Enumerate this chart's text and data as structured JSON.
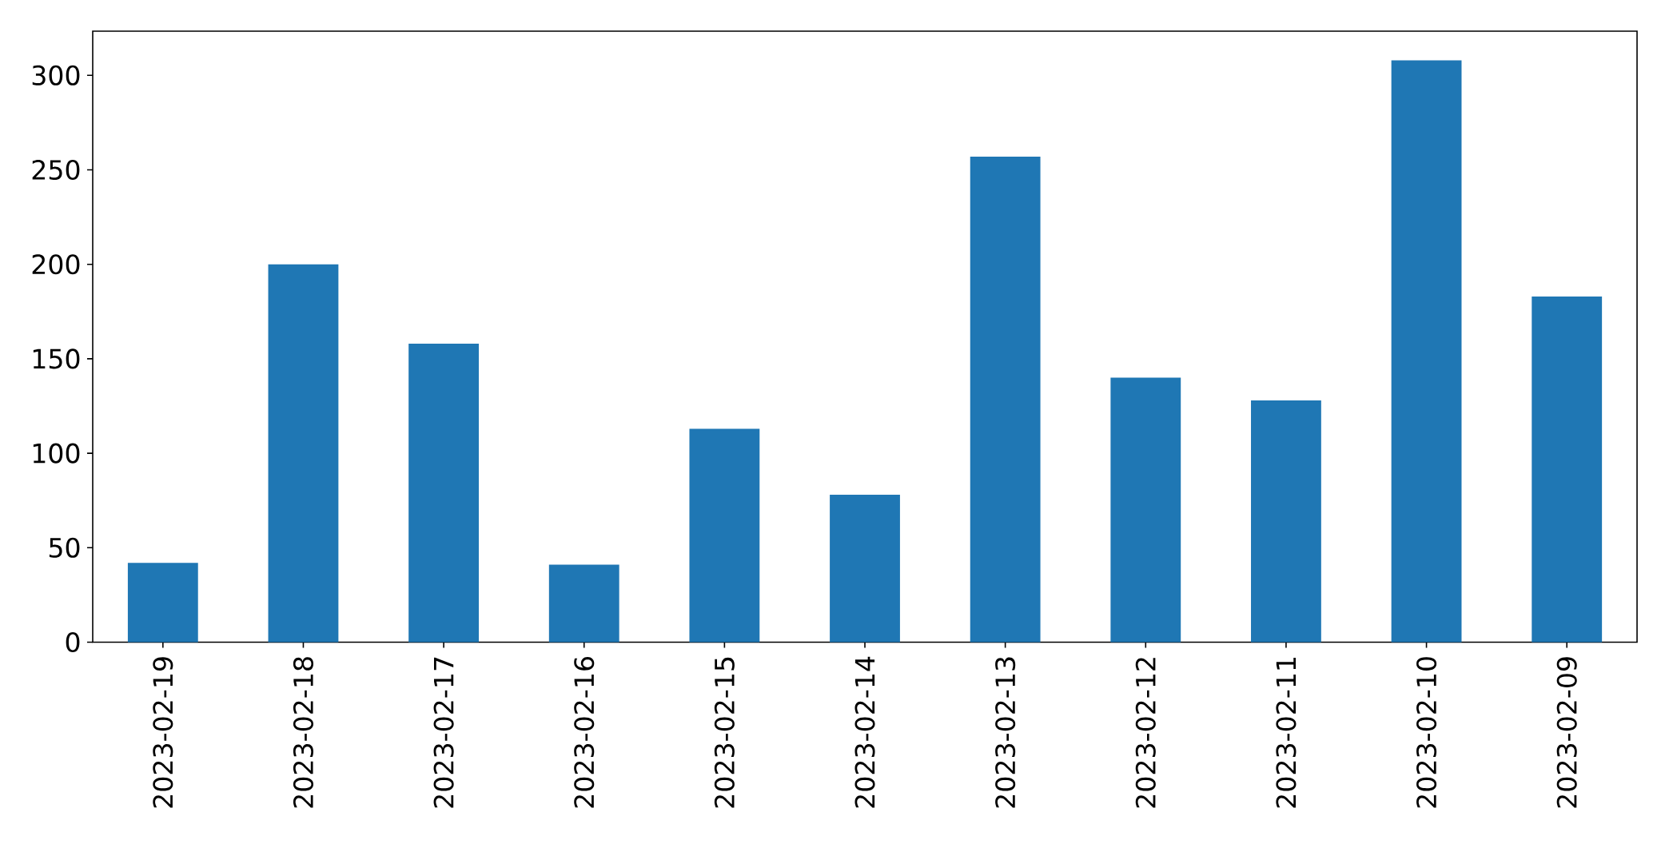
{
  "chart_data": {
    "type": "bar",
    "categories": [
      "2023-02-19",
      "2023-02-18",
      "2023-02-17",
      "2023-02-16",
      "2023-02-15",
      "2023-02-14",
      "2023-02-13",
      "2023-02-12",
      "2023-02-11",
      "2023-02-10",
      "2023-02-09"
    ],
    "values": [
      42,
      200,
      158,
      41,
      113,
      78,
      257,
      140,
      128,
      308,
      183
    ],
    "color": "#1f77b4",
    "ylim": [
      0,
      323.4
    ],
    "yticks": [
      0,
      50,
      100,
      150,
      200,
      250,
      300
    ]
  }
}
